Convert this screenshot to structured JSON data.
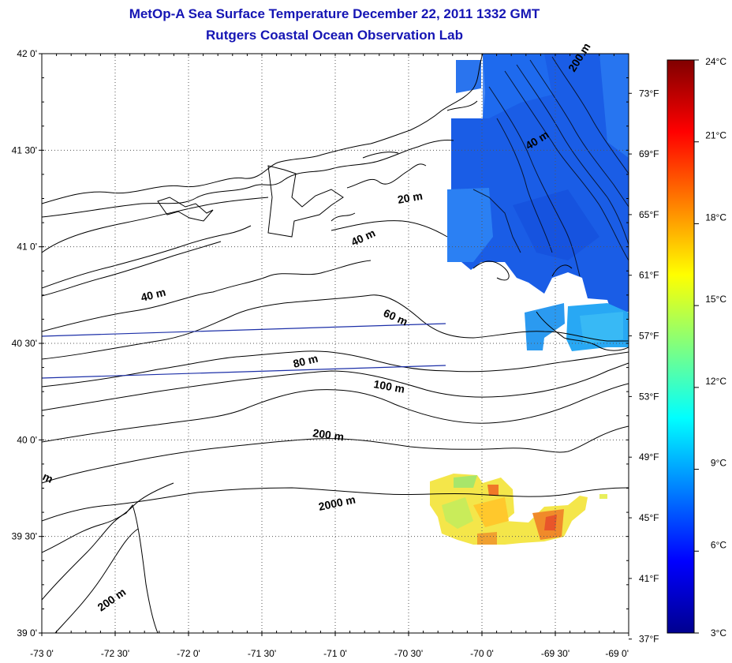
{
  "header": {
    "title": "MetOp-A Sea Surface Temperature December 22, 2011 1332 GMT",
    "subtitle": "Rutgers Coastal Ocean Observation Lab"
  },
  "map": {
    "lat_range": [
      39.0,
      42.0
    ],
    "lon_range": [
      -73.0,
      -69.0
    ],
    "grid": true,
    "lat_ticks": [
      {
        "value": 42.0,
        "label": "42 0'"
      },
      {
        "value": 41.5,
        "label": "41 30'"
      },
      {
        "value": 41.0,
        "label": "41 0'"
      },
      {
        "value": 40.5,
        "label": "40 30'"
      },
      {
        "value": 40.0,
        "label": "40 0'"
      },
      {
        "value": 39.5,
        "label": "39 30'"
      },
      {
        "value": 39.0,
        "label": "39 0'"
      }
    ],
    "lon_ticks": [
      {
        "value": -73.0,
        "label": "-73 0'"
      },
      {
        "value": -72.5,
        "label": "-72 30'"
      },
      {
        "value": -72.0,
        "label": "-72 0'"
      },
      {
        "value": -71.5,
        "label": "-71 30'"
      },
      {
        "value": -71.0,
        "label": "-71 0'"
      },
      {
        "value": -70.5,
        "label": "-70 30'"
      },
      {
        "value": -70.0,
        "label": "-70 0'"
      },
      {
        "value": -69.5,
        "label": "-69 30'"
      },
      {
        "value": -69.0,
        "label": "-69 0'"
      }
    ],
    "fahrenheit_ticks": [
      "73°F",
      "69°F",
      "65°F",
      "61°F",
      "57°F",
      "53°F",
      "49°F",
      "45°F",
      "41°F",
      "37°F"
    ],
    "isobath_labels": [
      "20 m",
      "40 m",
      "40 m",
      "40 m",
      "60 m",
      "80 m",
      "100 m",
      "200 m",
      "200 m",
      "200 m",
      "2000 m",
      "m"
    ]
  },
  "colorbar": {
    "min_c": 3,
    "max_c": 24,
    "labels": [
      "24°C",
      "21°C",
      "18°C",
      "15°C",
      "12°C",
      "9°C",
      "6°C",
      "3°C"
    ],
    "colors": [
      "#00008f",
      "#0000ff",
      "#00ffff",
      "#ffff00",
      "#ff0000",
      "#800000"
    ]
  }
}
